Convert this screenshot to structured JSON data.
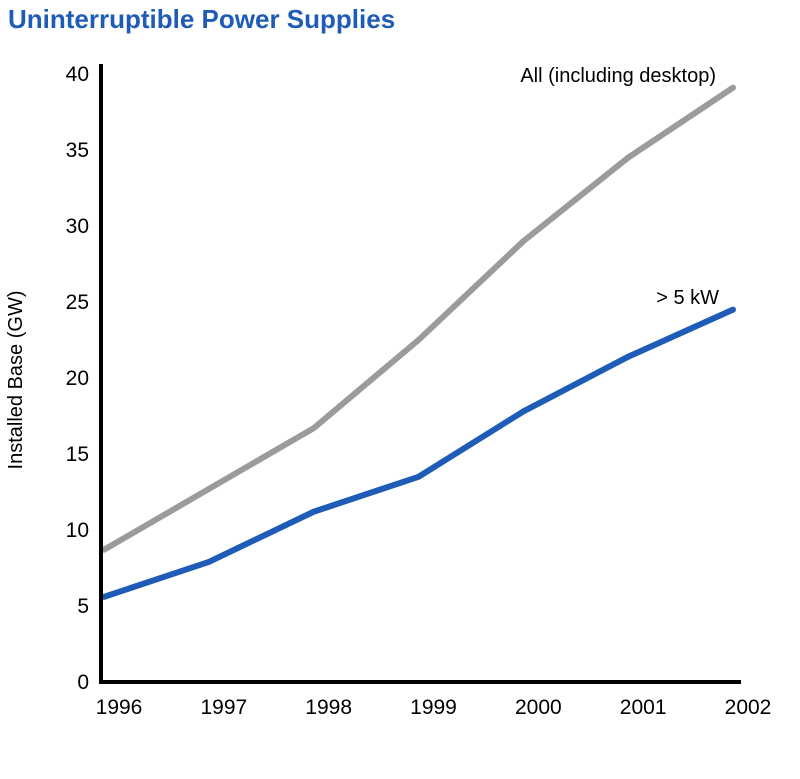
{
  "chart_data": {
    "type": "line",
    "title": "Uninterruptible Power Supplies",
    "xlabel": "",
    "ylabel": "Installed Base (GW)",
    "categories": [
      "1996",
      "1997",
      "1998",
      "1999",
      "2000",
      "2001",
      "2002"
    ],
    "ylim": [
      0,
      40
    ],
    "yticks": [
      "0",
      "5",
      "10",
      "15",
      "20",
      "25",
      "30",
      "35",
      "40"
    ],
    "grid": false,
    "series": [
      {
        "name": "All (including desktop)",
        "color": "#9b9b9d",
        "values": [
          8.7,
          12.7,
          16.7,
          22.5,
          29.0,
          34.5,
          39.1
        ]
      },
      {
        "name": "> 5 kW",
        "color": "#1f5cb8",
        "values": [
          5.6,
          7.9,
          11.2,
          13.5,
          17.8,
          21.4,
          24.5
        ]
      }
    ]
  },
  "colors": {
    "title": "#1f5cb8",
    "axis": "#000000"
  }
}
